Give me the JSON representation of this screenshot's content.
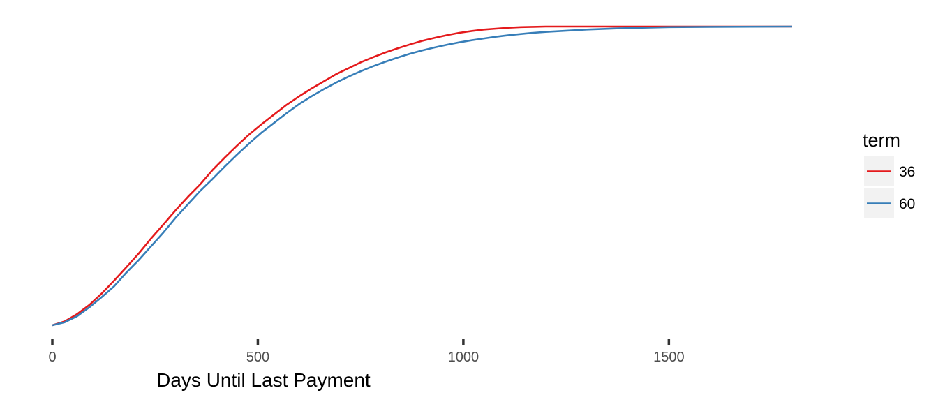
{
  "chart_data": {
    "type": "line",
    "xlabel": "Days Until Last Payment",
    "ylabel": "",
    "xlim": [
      0,
      1800
    ],
    "ylim": [
      0,
      1
    ],
    "x_ticks": [
      0,
      500,
      1000,
      1500
    ],
    "x_tick_labels": [
      "0",
      "500",
      "1000",
      "1500"
    ],
    "grid": false,
    "legend": {
      "title": "term",
      "placement": "right",
      "entries": [
        {
          "label": "36",
          "color": "#e41a1c"
        },
        {
          "label": "60",
          "color": "#377eb8"
        }
      ]
    },
    "series": [
      {
        "name": "36",
        "color": "#e41a1c",
        "x": [
          0,
          30,
          60,
          90,
          120,
          150,
          180,
          210,
          240,
          270,
          300,
          330,
          360,
          390,
          420,
          450,
          480,
          510,
          540,
          570,
          600,
          630,
          660,
          690,
          720,
          750,
          780,
          810,
          840,
          870,
          900,
          930,
          960,
          990,
          1020,
          1050,
          1080,
          1110,
          1140,
          1170,
          1200,
          1300,
          1400,
          1500,
          1600,
          1800
        ],
        "values": [
          0,
          0.013,
          0.037,
          0.068,
          0.106,
          0.149,
          0.194,
          0.24,
          0.29,
          0.337,
          0.385,
          0.43,
          0.472,
          0.52,
          0.562,
          0.602,
          0.64,
          0.674,
          0.706,
          0.738,
          0.766,
          0.792,
          0.816,
          0.84,
          0.86,
          0.88,
          0.897,
          0.913,
          0.927,
          0.94,
          0.952,
          0.962,
          0.971,
          0.979,
          0.985,
          0.99,
          0.993,
          0.996,
          0.998,
          0.999,
          1.0,
          1.0,
          1.0,
          1.0,
          1.0,
          1.0
        ]
      },
      {
        "name": "60",
        "color": "#377eb8",
        "x": [
          0,
          30,
          60,
          90,
          120,
          150,
          180,
          210,
          240,
          270,
          300,
          330,
          360,
          390,
          420,
          450,
          480,
          510,
          540,
          570,
          600,
          630,
          660,
          690,
          720,
          750,
          780,
          810,
          840,
          870,
          900,
          930,
          960,
          990,
          1020,
          1050,
          1080,
          1110,
          1140,
          1170,
          1200,
          1300,
          1400,
          1500,
          1600,
          1800
        ],
        "values": [
          0,
          0.01,
          0.03,
          0.06,
          0.094,
          0.13,
          0.176,
          0.218,
          0.264,
          0.31,
          0.36,
          0.405,
          0.45,
          0.49,
          0.532,
          0.572,
          0.61,
          0.646,
          0.678,
          0.71,
          0.74,
          0.766,
          0.79,
          0.812,
          0.832,
          0.85,
          0.867,
          0.882,
          0.896,
          0.909,
          0.92,
          0.93,
          0.939,
          0.947,
          0.954,
          0.96,
          0.966,
          0.971,
          0.975,
          0.979,
          0.982,
          0.99,
          0.995,
          0.998,
          0.999,
          1.0
        ]
      }
    ]
  }
}
